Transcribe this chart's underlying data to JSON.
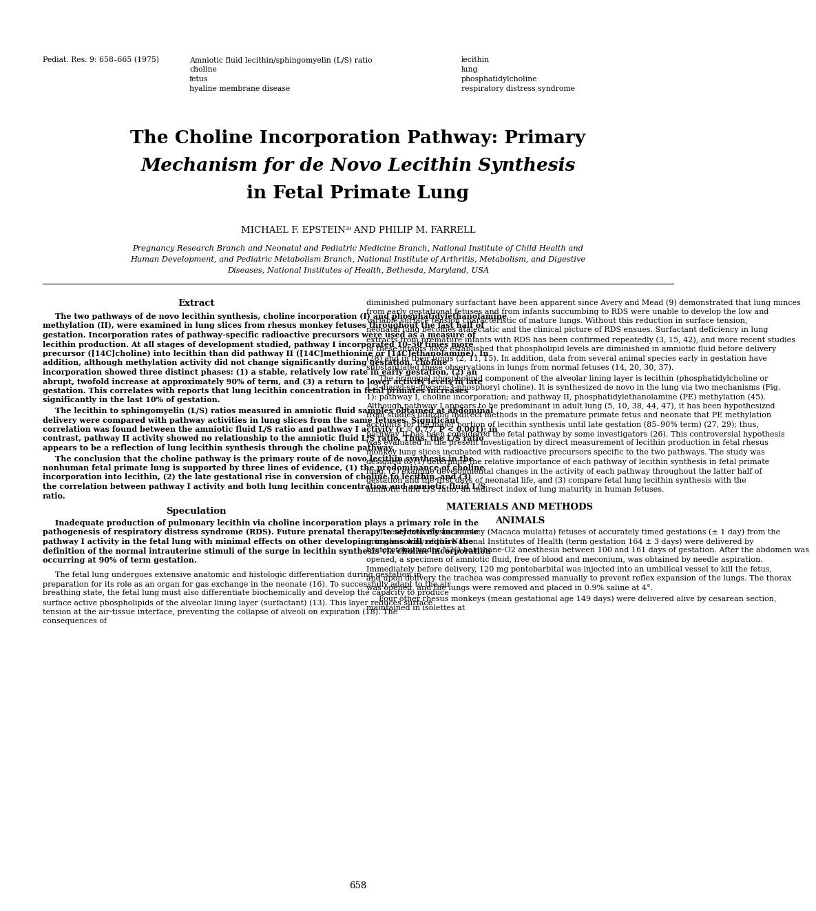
{
  "background_color": "#ffffff",
  "header_journal": "Pediat. Res. 9: 658–665 (1975)",
  "keywords_left": [
    "Amniotic fluid lecithin/sphingomyelin (L/S) ratio",
    "choline",
    "fetus",
    "hyaline membrane disease"
  ],
  "keywords_right": [
    "lecithin",
    "lung",
    "phosphatidylcholine",
    "respiratory distress syndrome"
  ],
  "title_line1": "The Choline Incorporation Pathway: Primary",
  "title_line2_pre": "Mechanism for ",
  "title_line2_italic": "de Novo",
  "title_line2_post": " Lecithin Synthesis",
  "title_line3": "in Fetal Primate Lung",
  "authors": "MICHAEL F. EPSTEIN³ⁱ AND PHILIP M. FARRELL",
  "affiliation1": "Pregnancy Research Branch and Neonatal and Pediatric Medicine Branch, National Institute of Child Health and",
  "affiliation2": "Human Development, and Pediatric Metabolism Branch, National Institute of Arthritis, Metabolism, and Digestive",
  "affiliation3": "Diseases, National Institutes of Health, Bethesda, Maryland, USA",
  "extract_heading": "Extract",
  "abstract_para1": "The two pathways of de novo lecithin synthesis, choline incorporation (I) and phosphatidylethanolamine methylation (II), were examined in lung slices from rhesus monkey fetuses throughout the last half of gestation. Incorporation rates of pathway-specific radioactive precursors were used as a measure of lecithin production. At all stages of development studied, pathway I incorporated 10–50 times more precursor ([14C]choline) into lecithin than did pathway II ([14C]methionine or [14C]ethanolamine). In addition, although methylation activity did not change significantly during gestation, choline incorporation showed three distinct phases: (1) a stable, relatively low rate in early gestation, (2) an abrupt, twofold increase at approximately 90% of term, and (3) a return to lower activity levels in late gestation. This correlates with reports that lung lecithin concentration in fetal primates increases significantly in the last 10% of gestation.",
  "abstract_para2": "The lecithin to sphingomyelin (L/S) ratios measured in amniotic fluid samples obtained at abdominal delivery were compared with pathway activities in lung slices from the same fetuses. Significant correlation was found between the amniotic fluid L/S ratio and pathway I activity (r = 0.77, P < 0.001); in contrast, pathway II activity showed no relationship to the amniotic fluid L/S ratio. Thus, the L/S ratio appears to be a reflection of lung lecithin synthesis through the choline pathway.",
  "abstract_para3": "The conclusion that the choline pathway is the primary route of de novo lecithin synthesis in the nonhuman fetal primate lung is supported by three lines of evidence, (1) the predominance of choline incorporation into lecithin, (2) the late gestational rise in conversion of choline to lecithin, and (3) the correlation between pathway I activity and both lung lecithin concentration and amniotic fluid L/S ratio.",
  "speculation_heading": "Speculation",
  "speculation_para": "Inadequate production of pulmonary lecithin via choline incorporation plays a primary role in the pathogenesis of respiratory distress syndrome (RDS). Future prenatal therapy to selectively increase pathway I activity in the fetal lung with minimal effects on other developing organs will require the definition of the normal intrauterine stimuli of the surge in lecithin synthesis via choline incorporation occurring at 90% of term gestation.",
  "fetal_lung_para": "The fetal lung undergoes extensive anatomic and histologic differentiation during gestation in preparation for its role as an organ for gas exchange in the neonate (16). To successfully adapt to the air breathing state, the fetal lung must also differentiate biochemically and develop the capacity to produce surface active phospholipids of the alveolar lining layer (surfactant) (13). This layer reduces surface tension at the air-tissue interface, preventing the collapse of alveoli on expiration (18). The consequences of",
  "right_para1": "diminished pulmonary surfactant have been apparent since Avery and Mead (9) demonstrated that lung minces from early gestational fetuses and from infants succumbing to RDS were unable to develop the low and variable surface tension characteristic of mature lungs. Without this reduction in surface tension, neonatal lung becomes atalectatic and the clinical picture of RDS ensues. Surfactant deficiency in lung extracts from premature infants with RDS has been confirmed repeatedly (3, 15, 42), and more recent studies in these infants have established that phospholipid levels are diminished in amniotic fluid before delivery (28) and in their lungs (2, 11, 15). In addition, data from several animal species early in gestation have substantiated these observations in lungs from normal fetuses (14, 20, 30, 37).",
  "right_para2": "The principal phospholipid component of the alveolar lining layer is lecithin (phosphatidylcholine or 1,2-diacyl-sn-glycero-3-phosphoryl choline). It is synthesized de novo in the lung via two mechanisms (Fig. 1): pathway I, choline incorporation; and pathway II, phosphatidylethanolamine (PE) methylation (45). Although pathway I appears to be predominant in adult lung (5, 10, 38, 44, 47), it has been hypothesized from studies utilizing indirect methods in the premature primate fetus and neonate that PE methylation accounts for the major portion of lecithin synthesis until late gestation (85–90% term) (27, 29); thus, pathway II has been considered the fetal pathway by some investigators (26). This controversial hypothesis was evaluated in the present investigation by direct measurement of lecithin production in fetal rhesus monkey lung slices incubated with radioactive precursors specific to the two pathways. The study was designed to (1) determine the relative importance of each pathway of lecithin synthesis in fetal primate lung, (2) examine developmental changes in the activity of each pathway throughout the latter half of gestation and the first days of neonatal life, and (3) compare fetal lung lecithin synthesis with the amniotic fluid L/S ratio, an indirect index of lung maturity in human fetuses.",
  "materials_heading": "MATERIALS AND METHODS",
  "animals_heading": "ANIMALS",
  "animals_para1": "Twenty-two rhesus monkey (Macaca mulatta) fetuses of accurately timed gestations (± 1 day) from the primate colony of the National Institutes of Health (term gestation 164 ± 3 days) were delivered by hysterotomy under N2O-halothane-O2 anesthesia between 100 and 161 days of gestation. After the abdomen was opened, a specimen of amniotic fluid, free of blood and meconium, was obtained by needle aspiration. Immediately before delivery, 120 mg pentobarbital was injected into an umbilical vessel to kill the fetus, and upon delivery the trachea was compressed manually to prevent reflex expansion of the lungs. The thorax was opened, and the lungs were removed and placed in 0.9% saline at 4°.",
  "animals_para2": "Four other rhesus monkeys (mean gestational age 149 days) were delivered alive by cesarean section, maintained in isolettes at",
  "page_number": "658"
}
